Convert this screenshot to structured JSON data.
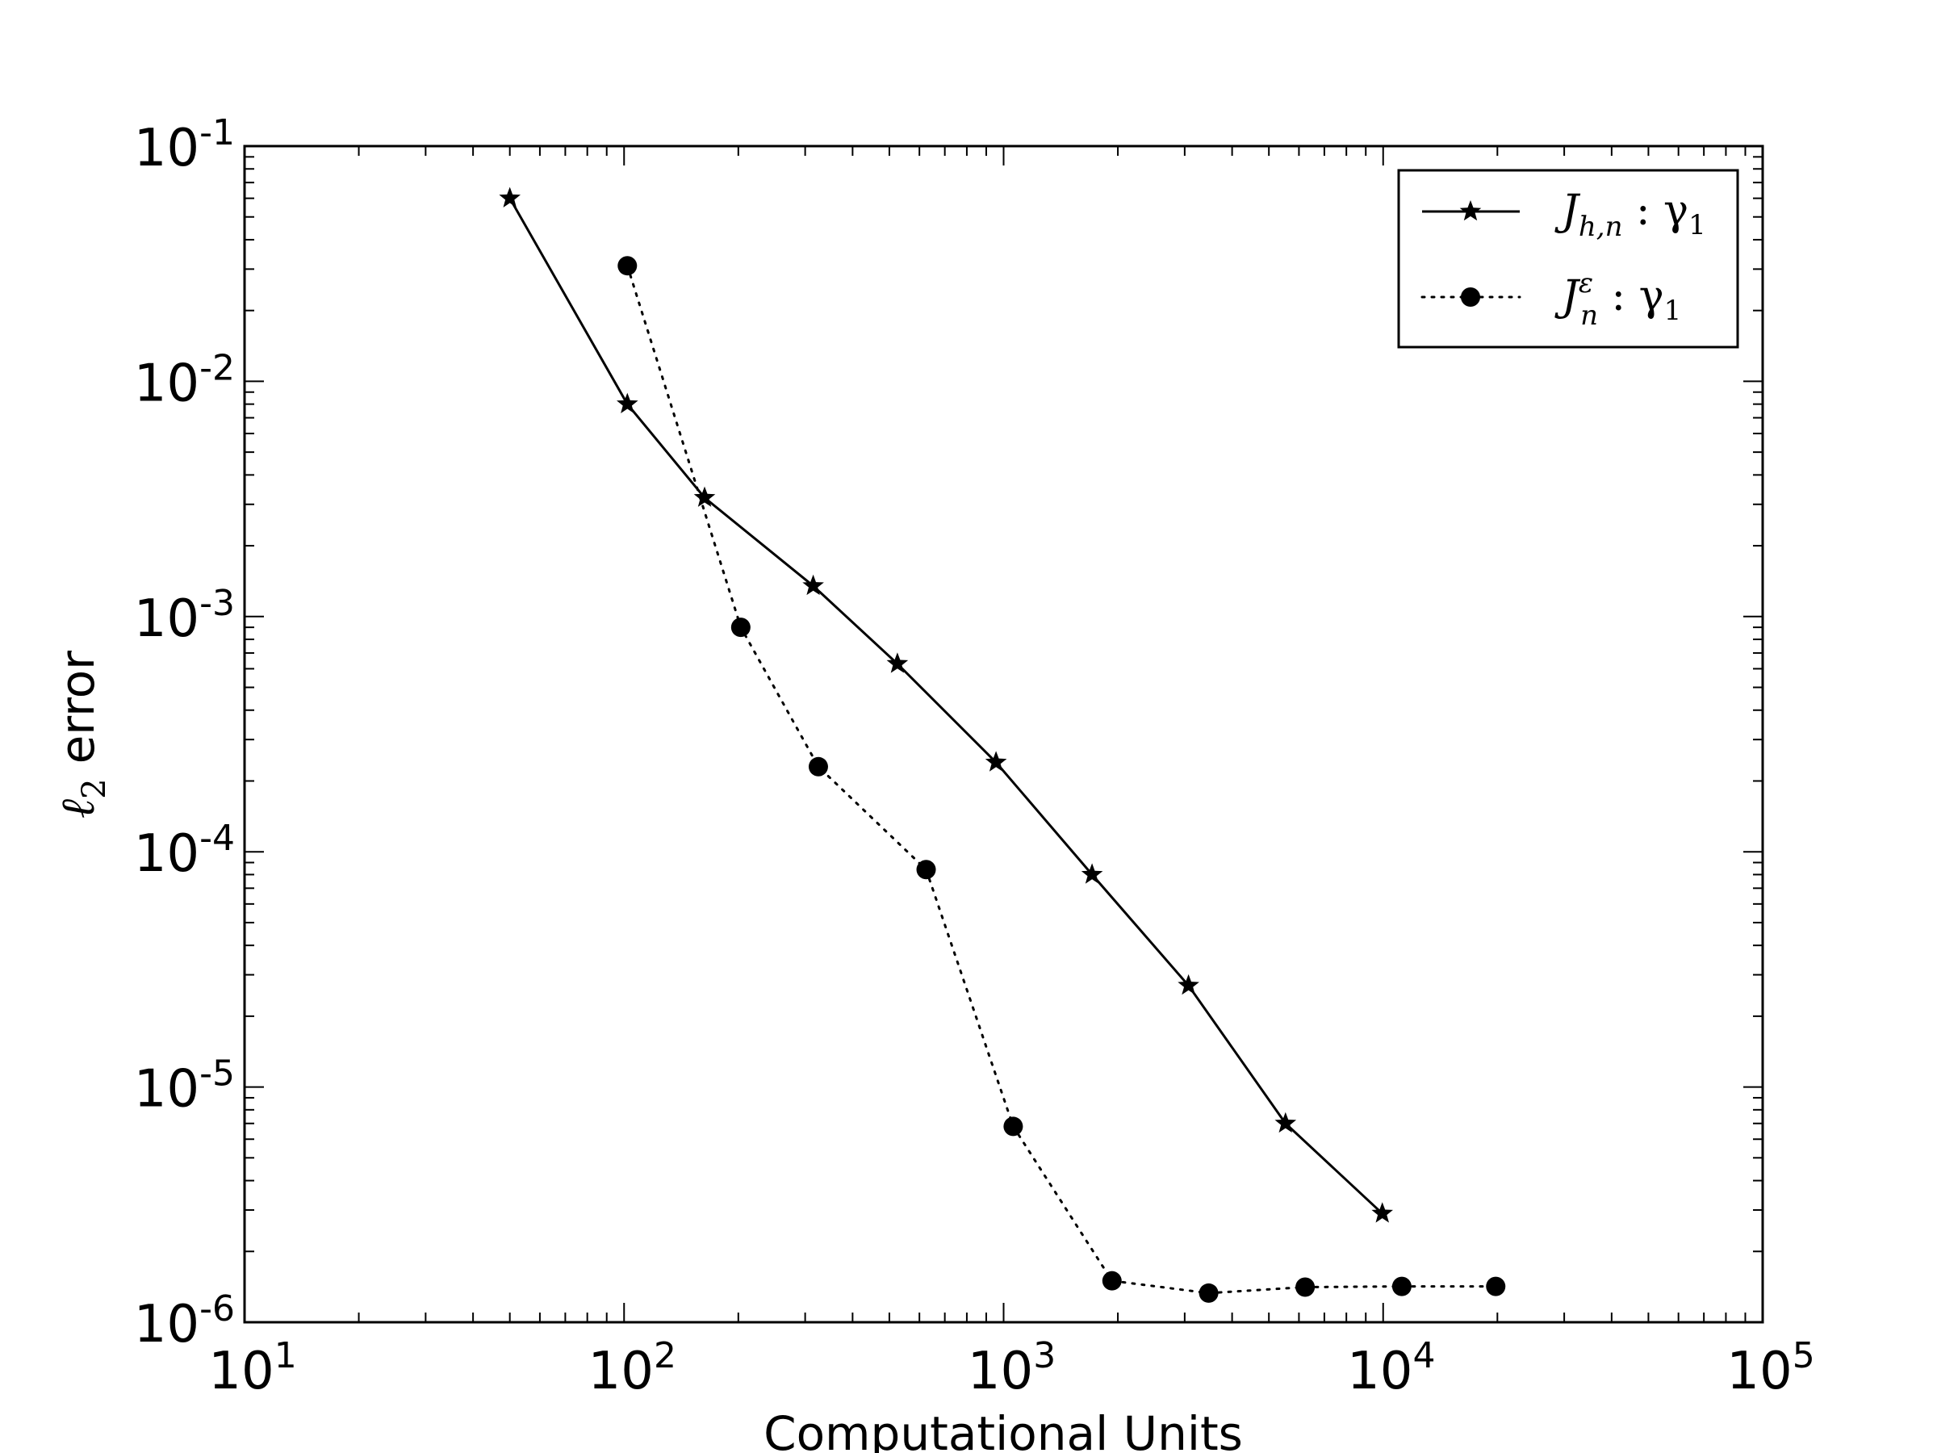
{
  "chart_data": {
    "type": "line",
    "xlabel": "Computational Units",
    "ylabel_symbol": "ℓ",
    "ylabel_subscript": "2",
    "ylabel_text": "error",
    "xscale": "log",
    "yscale": "log",
    "xlim": [
      10,
      100000
    ],
    "ylim": [
      1e-06,
      0.1
    ],
    "xticks": [
      {
        "value": 10,
        "base": "10",
        "exp": "1"
      },
      {
        "value": 100,
        "base": "10",
        "exp": "2"
      },
      {
        "value": 1000,
        "base": "10",
        "exp": "3"
      },
      {
        "value": 10000,
        "base": "10",
        "exp": "4"
      },
      {
        "value": 100000,
        "base": "10",
        "exp": "5"
      }
    ],
    "yticks": [
      {
        "value": 0.1,
        "base": "10",
        "exp": "-1"
      },
      {
        "value": 0.01,
        "base": "10",
        "exp": "-2"
      },
      {
        "value": 0.001,
        "base": "10",
        "exp": "-3"
      },
      {
        "value": 0.0001,
        "base": "10",
        "exp": "-4"
      },
      {
        "value": 1e-05,
        "base": "10",
        "exp": "-5"
      },
      {
        "value": 1e-06,
        "base": "10",
        "exp": "-6"
      }
    ],
    "grid": false,
    "legend_position": "top-right",
    "series": [
      {
        "name": "J_{h,n} : γ_1",
        "legend_main": "J",
        "legend_sub": "h,n",
        "legend_sup": "",
        "legend_rest": " : γ",
        "legend_rest_sub": "1",
        "marker": "star",
        "linestyle": "solid",
        "color": "#000000",
        "x": [
          50,
          102,
          163,
          315,
          525,
          955,
          1710,
          3070,
          5530,
          9950
        ],
        "y": [
          0.06,
          0.008,
          0.0032,
          0.00135,
          0.00063,
          0.00024,
          8e-05,
          2.7e-05,
          7e-06,
          2.9e-06
        ]
      },
      {
        "name": "J_n^ε : γ_1",
        "legend_main": "J",
        "legend_sub": "n",
        "legend_sup": "ε",
        "legend_rest": " : γ",
        "legend_rest_sub": "1",
        "marker": "circle",
        "linestyle": "dotted",
        "color": "#000000",
        "x": [
          102,
          203,
          325,
          625,
          1060,
          1930,
          3470,
          6230,
          11200,
          19800
        ],
        "y": [
          0.031,
          0.0009,
          0.00023,
          8.4e-05,
          6.8e-06,
          1.5e-06,
          1.33e-06,
          1.41e-06,
          1.42e-06,
          1.42e-06
        ]
      }
    ]
  }
}
